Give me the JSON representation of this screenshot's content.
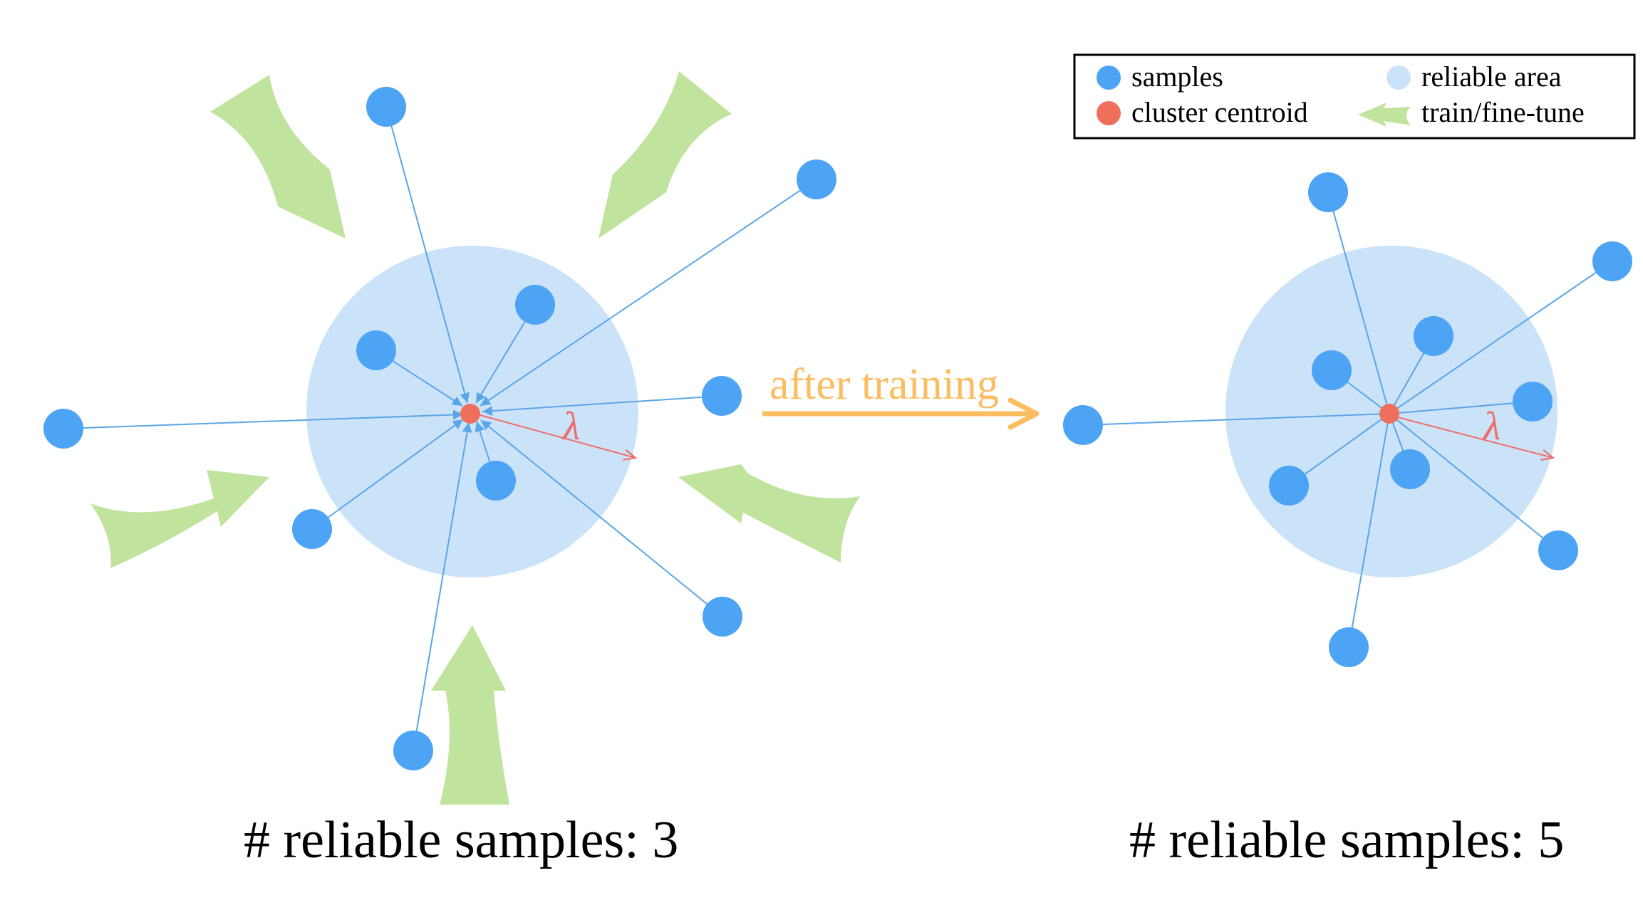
{
  "legend": {
    "samples_label": "samples",
    "centroid_label": "cluster centroid",
    "reliable_area_label": "reliable area",
    "train_label": "train/fine-tune"
  },
  "transition": {
    "label": "after training"
  },
  "left_cluster": {
    "lambda_label": "λ",
    "caption": "# reliable samples: 3"
  },
  "right_cluster": {
    "lambda_label": "λ",
    "caption": "# reliable samples: 5"
  },
  "colors": {
    "sample": "#4da3f4",
    "centroid": "#f06e5c",
    "reliable_area": "#cbe3f9",
    "train_arrow": "#c0e49e",
    "transition_arrow": "#fbbd62",
    "line": "#5aa5e8",
    "radius": "#ef6b6b"
  },
  "icons": {
    "sample": "blue-dot-icon",
    "centroid": "red-dot-icon",
    "reliable_area": "light-blue-circle-icon",
    "train": "green-arrow-icon"
  }
}
